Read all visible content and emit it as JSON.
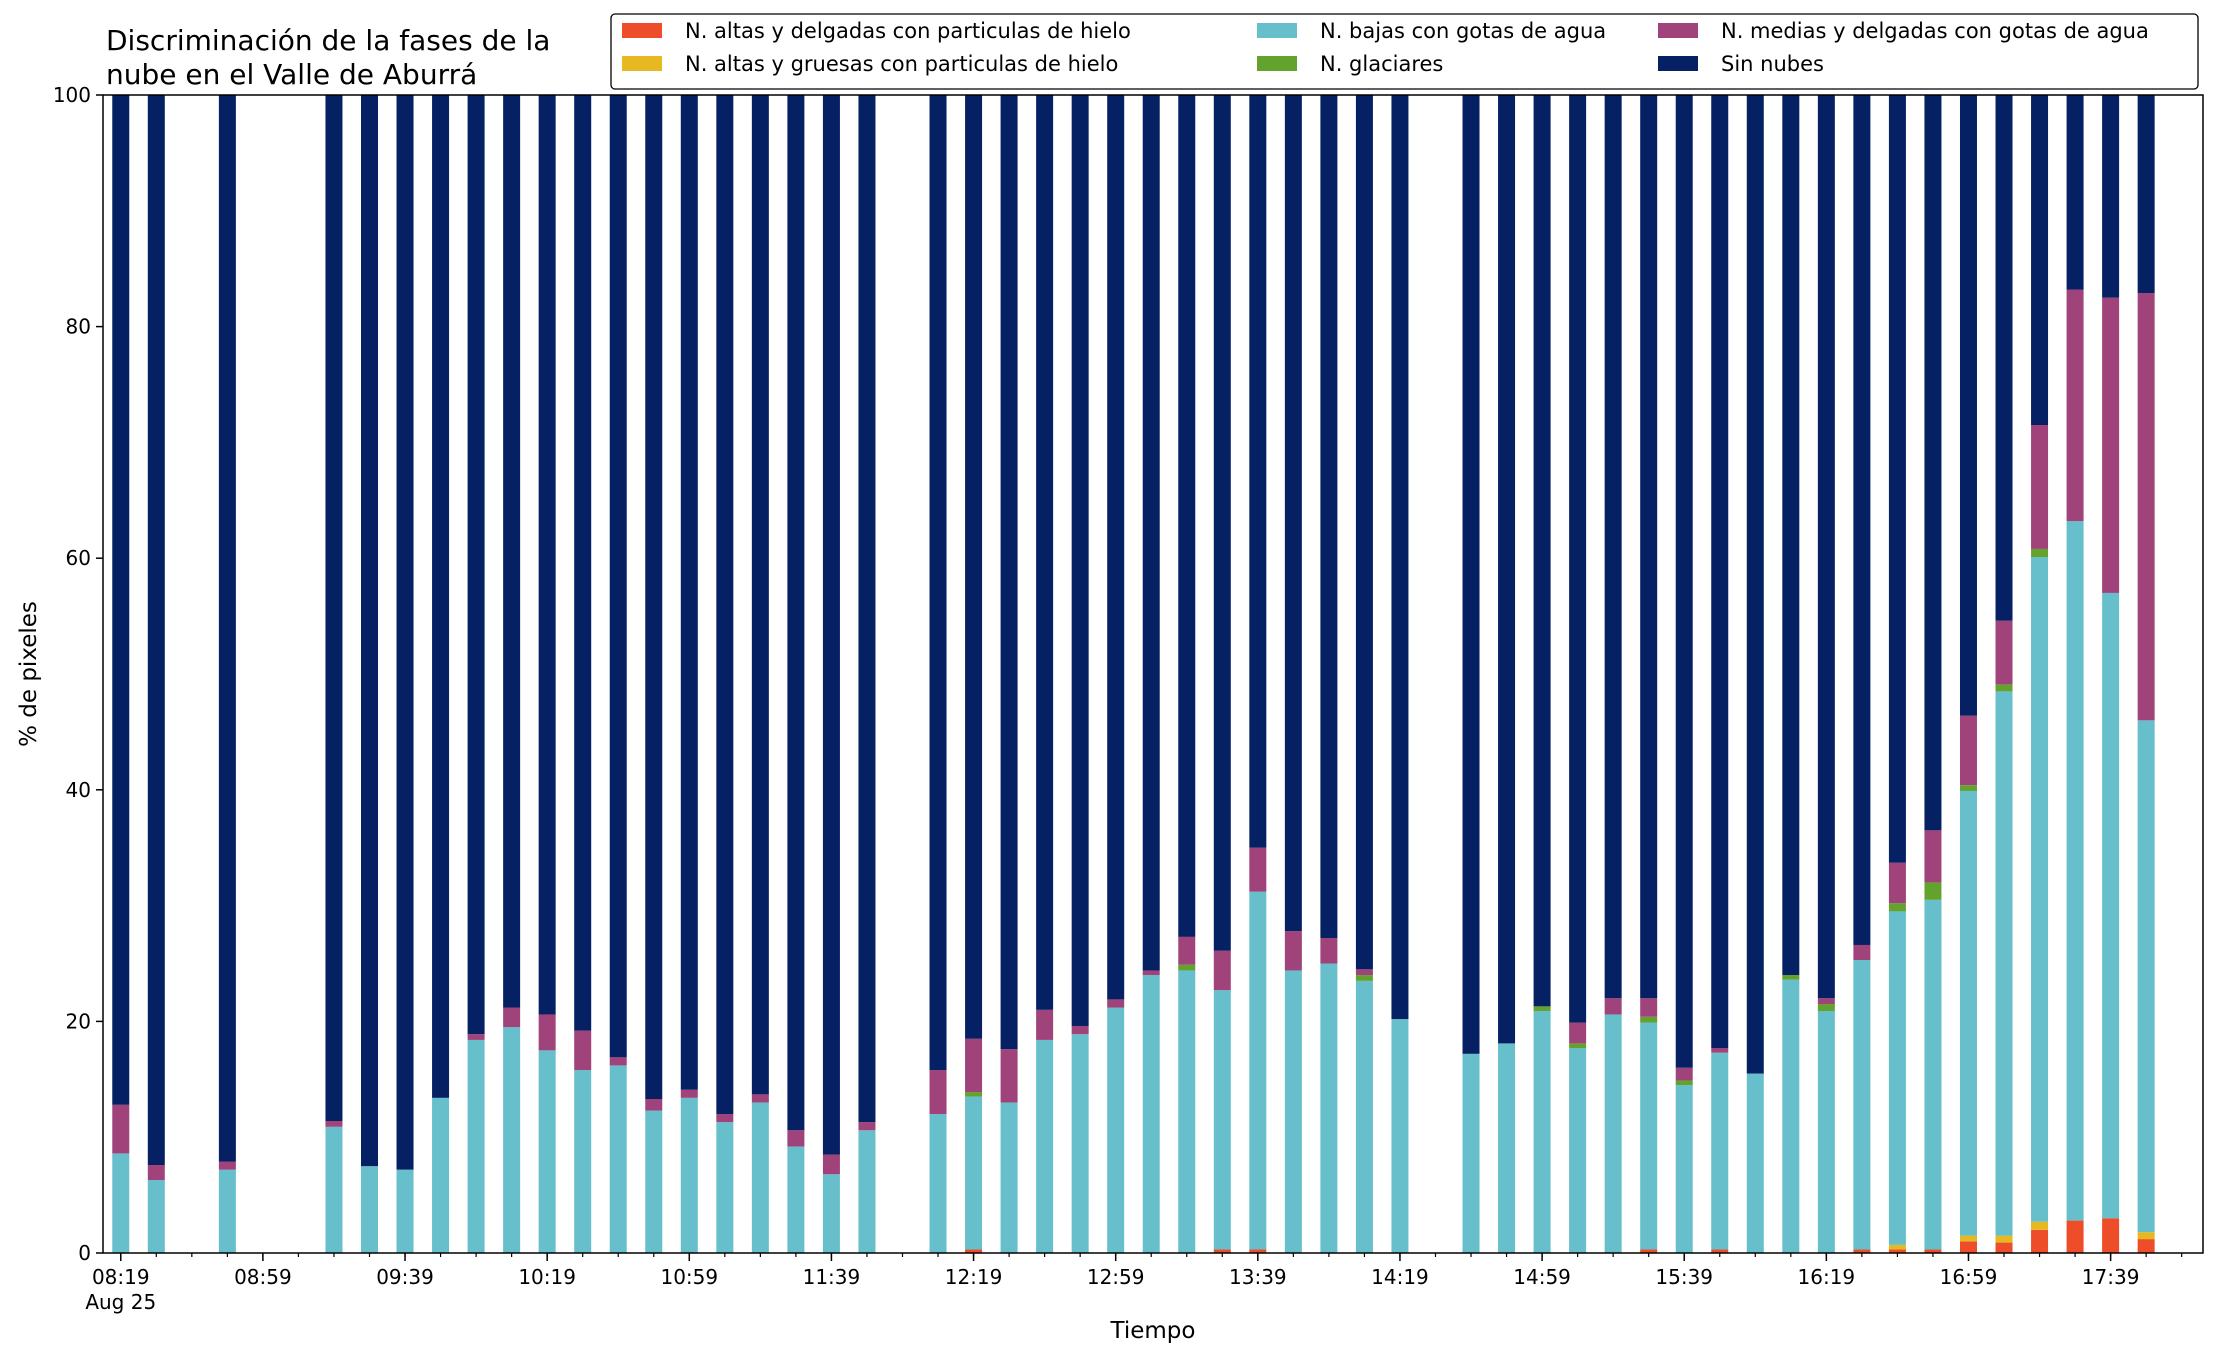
{
  "chart_data": {
    "type": "bar",
    "stacked": true,
    "title": "Discriminación de la fases de la nube en el Valle de Aburrá",
    "xlabel": "Tiempo",
    "ylabel": "% de pixeles",
    "ylim": [
      0,
      100
    ],
    "y_ticks": [
      0,
      20,
      40,
      60,
      80,
      100
    ],
    "x_range": [
      "08:14",
      "18:05"
    ],
    "x_tick_labels": [
      {
        "time": "08:19",
        "label": "08:19",
        "sublabel": "Aug 25"
      },
      {
        "time": "08:59",
        "label": "08:59"
      },
      {
        "time": "09:39",
        "label": "09:39"
      },
      {
        "time": "10:19",
        "label": "10:19"
      },
      {
        "time": "10:59",
        "label": "10:59"
      },
      {
        "time": "11:39",
        "label": "11:39"
      },
      {
        "time": "12:19",
        "label": "12:19"
      },
      {
        "time": "12:59",
        "label": "12:59"
      },
      {
        "time": "13:39",
        "label": "13:39"
      },
      {
        "time": "14:19",
        "label": "14:19"
      },
      {
        "time": "14:59",
        "label": "14:59"
      },
      {
        "time": "15:39",
        "label": "15:39"
      },
      {
        "time": "16:19",
        "label": "16:19"
      },
      {
        "time": "16:59",
        "label": "16:59"
      },
      {
        "time": "17:39",
        "label": "17:39"
      }
    ],
    "minor_tick_minutes": 10,
    "legend_position": "top-right",
    "legend_columns": 3,
    "grid": false,
    "x": [
      "08:19",
      "08:29",
      "08:49",
      "09:19",
      "09:29",
      "09:39",
      "09:49",
      "09:59",
      "10:09",
      "10:19",
      "10:29",
      "10:39",
      "10:49",
      "10:59",
      "11:09",
      "11:19",
      "11:29",
      "11:39",
      "11:49",
      "12:09",
      "12:19",
      "12:29",
      "12:39",
      "12:49",
      "12:59",
      "13:09",
      "13:19",
      "13:29",
      "13:39",
      "13:49",
      "13:59",
      "14:09",
      "14:19",
      "14:39",
      "14:49",
      "14:59",
      "15:09",
      "15:19",
      "15:29",
      "15:39",
      "15:49",
      "15:59",
      "16:09",
      "16:19",
      "16:29",
      "16:39",
      "16:49",
      "16:59",
      "17:09",
      "17:19",
      "17:29",
      "17:39",
      "17:49"
    ],
    "series": [
      {
        "name": "N. altas y delgadas con particulas de hielo",
        "color": "#EE4D2A",
        "values": [
          0,
          0,
          0,
          0,
          0,
          0,
          0,
          0,
          0,
          0,
          0,
          0,
          0,
          0,
          0,
          0,
          0,
          0,
          0,
          0,
          0.3,
          0,
          0,
          0,
          0,
          0,
          0,
          0.3,
          0.3,
          0,
          0,
          0,
          0,
          0,
          0,
          0,
          0,
          0,
          0.3,
          0,
          0.3,
          0,
          0,
          0,
          0.3,
          0.3,
          0.3,
          1.0,
          0.9,
          2.0,
          2.8,
          3.0,
          1.2
        ]
      },
      {
        "name": "N. altas y gruesas con particulas de hielo",
        "color": "#E6B821",
        "values": [
          0,
          0,
          0,
          0,
          0,
          0,
          0,
          0,
          0,
          0,
          0,
          0,
          0,
          0,
          0,
          0,
          0,
          0,
          0,
          0,
          0,
          0,
          0,
          0,
          0,
          0,
          0,
          0,
          0,
          0,
          0,
          0,
          0,
          0,
          0,
          0,
          0,
          0,
          0,
          0,
          0,
          0,
          0,
          0,
          0,
          0.4,
          0,
          0.5,
          0.6,
          0.7,
          0,
          0,
          0.6
        ]
      },
      {
        "name": "N. bajas con gotas de agua",
        "color": "#67BFCB",
        "values": [
          8.6,
          6.3,
          7.2,
          10.9,
          7.5,
          7.2,
          13.4,
          18.4,
          19.5,
          17.5,
          15.8,
          16.2,
          12.3,
          13.4,
          11.3,
          13.0,
          9.2,
          6.8,
          10.6,
          12.0,
          13.2,
          13.0,
          18.4,
          18.9,
          21.2,
          24.0,
          24.4,
          22.4,
          30.9,
          24.4,
          25.0,
          23.5,
          20.2,
          17.2,
          18.1,
          20.9,
          17.7,
          20.6,
          19.6,
          14.5,
          17.0,
          15.5,
          23.6,
          20.9,
          25.0,
          28.8,
          30.2,
          38.4,
          47.0,
          57.4,
          60.4,
          54.0,
          44.2
        ]
      },
      {
        "name": "N. glaciares",
        "color": "#64A22E",
        "values": [
          0,
          0,
          0,
          0,
          0,
          0,
          0,
          0,
          0,
          0,
          0,
          0,
          0,
          0,
          0,
          0,
          0,
          0,
          0,
          0,
          0.4,
          0,
          0,
          0,
          0,
          0,
          0.5,
          0,
          0,
          0,
          0,
          0.5,
          0,
          0,
          0,
          0.4,
          0.4,
          0,
          0.5,
          0.4,
          0,
          0,
          0.4,
          0.6,
          0,
          0.7,
          1.5,
          0.5,
          0.6,
          0.7,
          0,
          0,
          0
        ]
      },
      {
        "name": "N. medias y delgadas con gotas de agua",
        "color": "#A0437A",
        "values": [
          4.2,
          1.3,
          0.7,
          0.5,
          0,
          0,
          0,
          0.5,
          1.7,
          3.1,
          3.4,
          0.7,
          1.0,
          0.7,
          0.7,
          0.7,
          1.4,
          1.7,
          0.7,
          3.8,
          4.6,
          4.6,
          2.6,
          0.7,
          0.7,
          0.4,
          2.4,
          3.4,
          3.8,
          3.4,
          2.2,
          0.5,
          0,
          0,
          0,
          0,
          1.8,
          1.4,
          1.6,
          1.1,
          0.4,
          0,
          0,
          0.5,
          1.3,
          3.5,
          4.5,
          6.0,
          5.5,
          10.7,
          20.0,
          25.5,
          36.9
        ]
      },
      {
        "name": "Sin nubes",
        "color": "#052063",
        "values": [
          87.2,
          92.4,
          92.1,
          88.6,
          92.5,
          92.8,
          86.6,
          81.1,
          78.8,
          79.4,
          80.8,
          83.1,
          86.7,
          85.9,
          88.0,
          86.3,
          89.4,
          91.5,
          88.7,
          84.2,
          81.5,
          82.4,
          79.0,
          80.4,
          78.1,
          75.6,
          72.7,
          73.9,
          65.0,
          72.2,
          72.8,
          75.5,
          79.8,
          82.8,
          81.9,
          78.7,
          80.1,
          78.0,
          78.0,
          84.0,
          82.3,
          84.5,
          76.0,
          78.0,
          73.4,
          66.3,
          63.5,
          53.6,
          45.4,
          28.5,
          16.8,
          17.5,
          17.1
        ]
      }
    ]
  }
}
